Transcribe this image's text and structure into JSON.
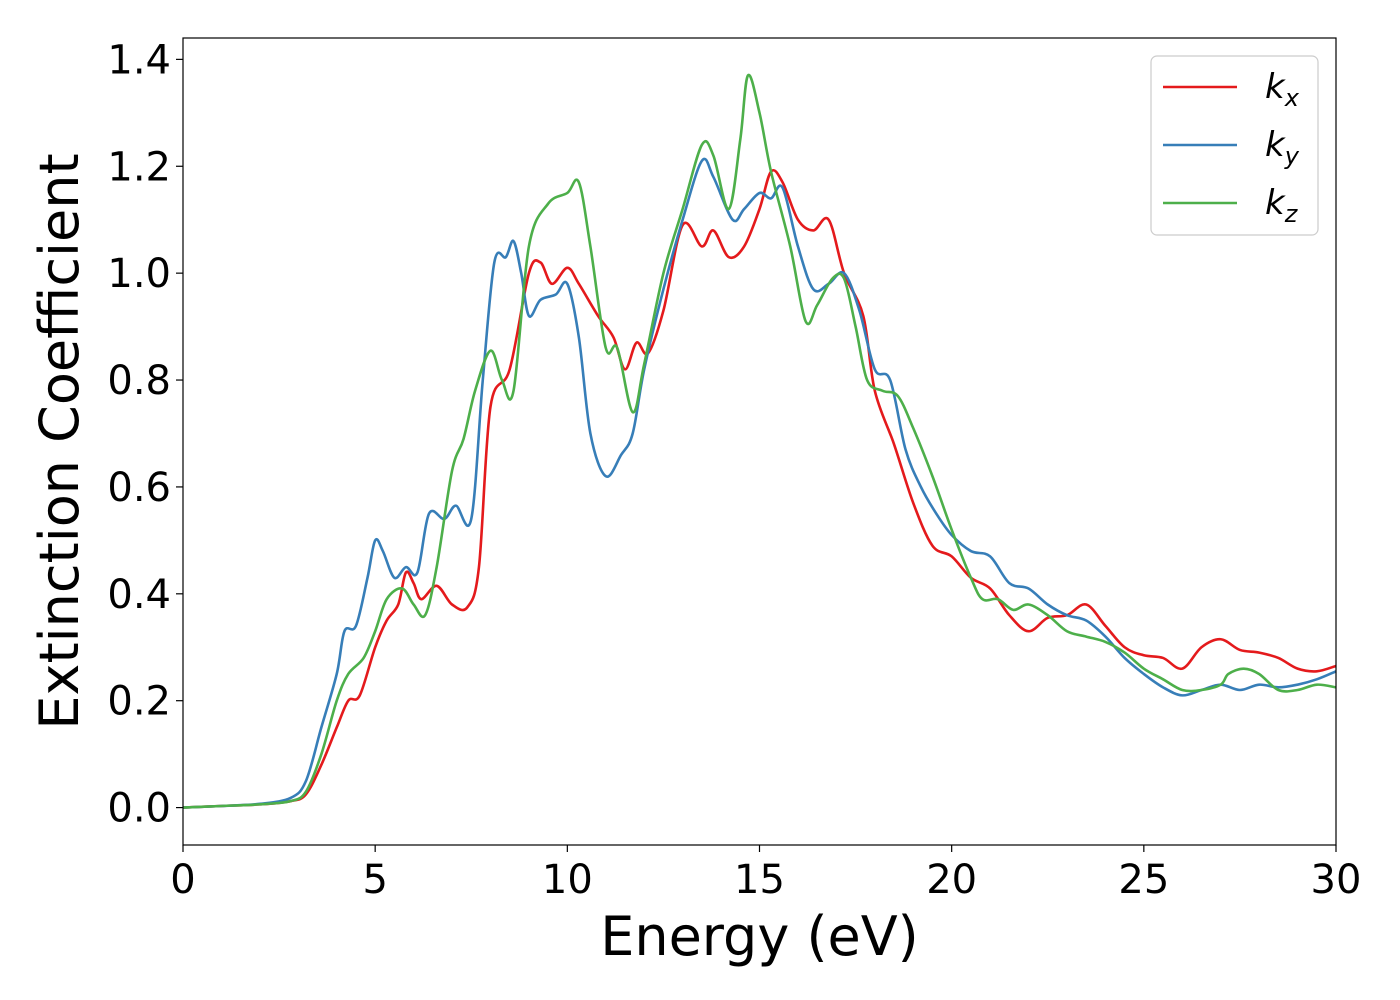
{
  "chart_data": {
    "type": "line",
    "title": "",
    "xlabel": "Energy (eV)",
    "ylabel": "Extinction Coefficient",
    "xlim": [
      0,
      30
    ],
    "ylim": [
      -0.07,
      1.44
    ],
    "xticks": [
      0,
      5,
      10,
      15,
      20,
      25,
      30
    ],
    "xtick_labels": [
      "0",
      "5",
      "10",
      "15",
      "20",
      "25",
      "30"
    ],
    "yticks": [
      0.0,
      0.2,
      0.4,
      0.6,
      0.8,
      1.0,
      1.2,
      1.4
    ],
    "ytick_labels": [
      "0.0",
      "0.2",
      "0.4",
      "0.6",
      "0.8",
      "1.0",
      "1.2",
      "1.4"
    ],
    "grid": false,
    "legend_position": "top-right",
    "series": [
      {
        "name": "k_x",
        "label_main": "k",
        "label_sub": "x",
        "color": "#e41a1c",
        "points": [
          [
            0,
            0
          ],
          [
            1,
            0.003
          ],
          [
            2,
            0.006
          ],
          [
            2.8,
            0.012
          ],
          [
            3.2,
            0.025
          ],
          [
            3.6,
            0.08
          ],
          [
            4,
            0.15
          ],
          [
            4.3,
            0.2
          ],
          [
            4.6,
            0.21
          ],
          [
            5,
            0.3
          ],
          [
            5.3,
            0.35
          ],
          [
            5.6,
            0.38
          ],
          [
            5.8,
            0.44
          ],
          [
            6,
            0.42
          ],
          [
            6.2,
            0.39
          ],
          [
            6.6,
            0.415
          ],
          [
            7,
            0.38
          ],
          [
            7.4,
            0.375
          ],
          [
            7.7,
            0.45
          ],
          [
            8,
            0.75
          ],
          [
            8.5,
            0.82
          ],
          [
            9,
            1.0
          ],
          [
            9.3,
            1.02
          ],
          [
            9.6,
            0.98
          ],
          [
            10,
            1.01
          ],
          [
            10.3,
            0.98
          ],
          [
            10.8,
            0.92
          ],
          [
            11.2,
            0.88
          ],
          [
            11.5,
            0.82
          ],
          [
            11.8,
            0.87
          ],
          [
            12.1,
            0.85
          ],
          [
            12.5,
            0.93
          ],
          [
            13,
            1.09
          ],
          [
            13.5,
            1.05
          ],
          [
            13.8,
            1.08
          ],
          [
            14.2,
            1.03
          ],
          [
            14.6,
            1.05
          ],
          [
            15,
            1.12
          ],
          [
            15.3,
            1.19
          ],
          [
            15.6,
            1.17
          ],
          [
            16,
            1.1
          ],
          [
            16.4,
            1.08
          ],
          [
            16.8,
            1.1
          ],
          [
            17.2,
            1.0
          ],
          [
            17.7,
            0.92
          ],
          [
            18,
            0.78
          ],
          [
            18.5,
            0.68
          ],
          [
            19,
            0.57
          ],
          [
            19.5,
            0.49
          ],
          [
            20,
            0.47
          ],
          [
            20.5,
            0.43
          ],
          [
            21,
            0.41
          ],
          [
            21.5,
            0.36
          ],
          [
            22,
            0.33
          ],
          [
            22.5,
            0.355
          ],
          [
            23,
            0.36
          ],
          [
            23.5,
            0.38
          ],
          [
            24,
            0.34
          ],
          [
            24.5,
            0.3
          ],
          [
            25,
            0.285
          ],
          [
            25.5,
            0.28
          ],
          [
            26,
            0.26
          ],
          [
            26.5,
            0.3
          ],
          [
            27,
            0.315
          ],
          [
            27.5,
            0.295
          ],
          [
            28,
            0.29
          ],
          [
            28.5,
            0.28
          ],
          [
            29,
            0.26
          ],
          [
            29.5,
            0.255
          ],
          [
            30,
            0.265
          ]
        ]
      },
      {
        "name": "k_y",
        "label_main": "k",
        "label_sub": "y",
        "color": "#377eb8",
        "points": [
          [
            0,
            0
          ],
          [
            1,
            0.003
          ],
          [
            2,
            0.007
          ],
          [
            2.8,
            0.018
          ],
          [
            3.2,
            0.05
          ],
          [
            3.6,
            0.15
          ],
          [
            4,
            0.25
          ],
          [
            4.2,
            0.33
          ],
          [
            4.5,
            0.34
          ],
          [
            4.8,
            0.43
          ],
          [
            5,
            0.5
          ],
          [
            5.2,
            0.48
          ],
          [
            5.5,
            0.43
          ],
          [
            5.8,
            0.45
          ],
          [
            6.1,
            0.44
          ],
          [
            6.4,
            0.55
          ],
          [
            6.8,
            0.54
          ],
          [
            7.1,
            0.565
          ],
          [
            7.5,
            0.54
          ],
          [
            7.8,
            0.8
          ],
          [
            8.1,
            1.02
          ],
          [
            8.4,
            1.03
          ],
          [
            8.6,
            1.06
          ],
          [
            8.8,
            1.0
          ],
          [
            9,
            0.92
          ],
          [
            9.3,
            0.95
          ],
          [
            9.7,
            0.96
          ],
          [
            10,
            0.98
          ],
          [
            10.3,
            0.88
          ],
          [
            10.6,
            0.7
          ],
          [
            11,
            0.62
          ],
          [
            11.4,
            0.66
          ],
          [
            11.7,
            0.7
          ],
          [
            12,
            0.82
          ],
          [
            12.5,
            0.97
          ],
          [
            13,
            1.1
          ],
          [
            13.5,
            1.21
          ],
          [
            13.8,
            1.18
          ],
          [
            14.3,
            1.1
          ],
          [
            14.6,
            1.12
          ],
          [
            15,
            1.15
          ],
          [
            15.3,
            1.14
          ],
          [
            15.6,
            1.16
          ],
          [
            16,
            1.05
          ],
          [
            16.4,
            0.97
          ],
          [
            16.8,
            0.98
          ],
          [
            17.2,
            1.0
          ],
          [
            17.6,
            0.93
          ],
          [
            18,
            0.82
          ],
          [
            18.4,
            0.8
          ],
          [
            18.8,
            0.67
          ],
          [
            19.2,
            0.6
          ],
          [
            19.6,
            0.55
          ],
          [
            20,
            0.51
          ],
          [
            20.5,
            0.48
          ],
          [
            21,
            0.47
          ],
          [
            21.5,
            0.42
          ],
          [
            22,
            0.41
          ],
          [
            22.5,
            0.38
          ],
          [
            23,
            0.36
          ],
          [
            23.5,
            0.35
          ],
          [
            24,
            0.32
          ],
          [
            24.5,
            0.28
          ],
          [
            25,
            0.25
          ],
          [
            25.5,
            0.225
          ],
          [
            26,
            0.21
          ],
          [
            26.5,
            0.22
          ],
          [
            27,
            0.23
          ],
          [
            27.5,
            0.22
          ],
          [
            28,
            0.23
          ],
          [
            28.5,
            0.225
          ],
          [
            29,
            0.23
          ],
          [
            29.5,
            0.24
          ],
          [
            30,
            0.255
          ]
        ]
      },
      {
        "name": "k_z",
        "label_main": "k",
        "label_sub": "z",
        "color": "#4daf4a",
        "points": [
          [
            0,
            0
          ],
          [
            1,
            0.003
          ],
          [
            2,
            0.006
          ],
          [
            2.8,
            0.012
          ],
          [
            3.2,
            0.03
          ],
          [
            3.6,
            0.1
          ],
          [
            4,
            0.2
          ],
          [
            4.3,
            0.25
          ],
          [
            4.7,
            0.28
          ],
          [
            5,
            0.33
          ],
          [
            5.3,
            0.39
          ],
          [
            5.7,
            0.41
          ],
          [
            6,
            0.38
          ],
          [
            6.3,
            0.36
          ],
          [
            6.6,
            0.45
          ],
          [
            7,
            0.63
          ],
          [
            7.3,
            0.69
          ],
          [
            7.6,
            0.78
          ],
          [
            8,
            0.855
          ],
          [
            8.3,
            0.8
          ],
          [
            8.6,
            0.78
          ],
          [
            9,
            1.05
          ],
          [
            9.5,
            1.13
          ],
          [
            10,
            1.15
          ],
          [
            10.3,
            1.17
          ],
          [
            10.6,
            1.05
          ],
          [
            11,
            0.86
          ],
          [
            11.3,
            0.86
          ],
          [
            11.7,
            0.74
          ],
          [
            12,
            0.83
          ],
          [
            12.5,
            1.0
          ],
          [
            13,
            1.12
          ],
          [
            13.5,
            1.24
          ],
          [
            13.8,
            1.22
          ],
          [
            14.2,
            1.12
          ],
          [
            14.5,
            1.25
          ],
          [
            14.7,
            1.37
          ],
          [
            15,
            1.3
          ],
          [
            15.3,
            1.19
          ],
          [
            15.8,
            1.05
          ],
          [
            16.2,
            0.91
          ],
          [
            16.5,
            0.94
          ],
          [
            16.9,
            0.99
          ],
          [
            17.2,
            0.99
          ],
          [
            17.5,
            0.9
          ],
          [
            17.8,
            0.8
          ],
          [
            18.2,
            0.78
          ],
          [
            18.6,
            0.77
          ],
          [
            19,
            0.71
          ],
          [
            19.5,
            0.62
          ],
          [
            20,
            0.52
          ],
          [
            20.5,
            0.43
          ],
          [
            20.8,
            0.39
          ],
          [
            21.2,
            0.39
          ],
          [
            21.6,
            0.37
          ],
          [
            22,
            0.38
          ],
          [
            22.5,
            0.36
          ],
          [
            23,
            0.33
          ],
          [
            23.5,
            0.32
          ],
          [
            24,
            0.31
          ],
          [
            24.5,
            0.29
          ],
          [
            25,
            0.26
          ],
          [
            25.5,
            0.24
          ],
          [
            26,
            0.22
          ],
          [
            26.5,
            0.22
          ],
          [
            27,
            0.23
          ],
          [
            27.2,
            0.25
          ],
          [
            27.6,
            0.26
          ],
          [
            28,
            0.25
          ],
          [
            28.5,
            0.22
          ],
          [
            29,
            0.22
          ],
          [
            29.5,
            0.23
          ],
          [
            30,
            0.225
          ]
        ]
      }
    ]
  }
}
